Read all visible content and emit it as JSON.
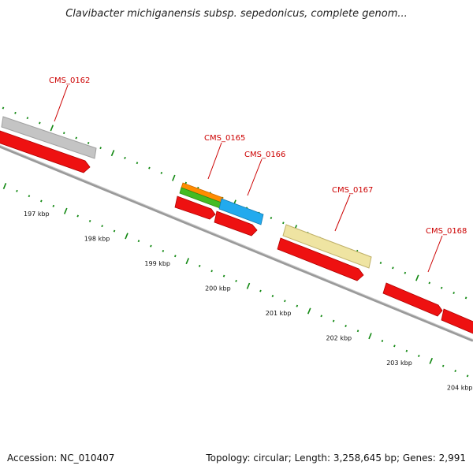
{
  "title": "Clavibacter michiganensis subsp. sepedonicus, complete genom...",
  "footer": {
    "accession": "Accession: NC_010407",
    "summary": "Topology: circular; Length: 3,258,645 bp; Genes: 2,991"
  },
  "colors": {
    "cds": "#ee1111",
    "backbone": "#888888",
    "ticks": "#118811",
    "gray_feature": "#bbbbbb",
    "orange_feature": "#ff8800",
    "green_feature": "#44bb22",
    "cyan_feature": "#22aaee",
    "yellow_feature": "#eee4a0",
    "label": "#cc0000"
  },
  "scale": {
    "labels": [
      "197 kbp",
      "198 kbp",
      "199 kbp",
      "200 kbp",
      "201 kbp",
      "202 kbp",
      "203 kbp",
      "204 kbp"
    ]
  },
  "genes": [
    {
      "label": "CMS_0162"
    },
    {
      "label": "CMS_0165"
    },
    {
      "label": "CMS_0166"
    },
    {
      "label": "CMS_0167"
    },
    {
      "label": "CMS_0168"
    }
  ]
}
